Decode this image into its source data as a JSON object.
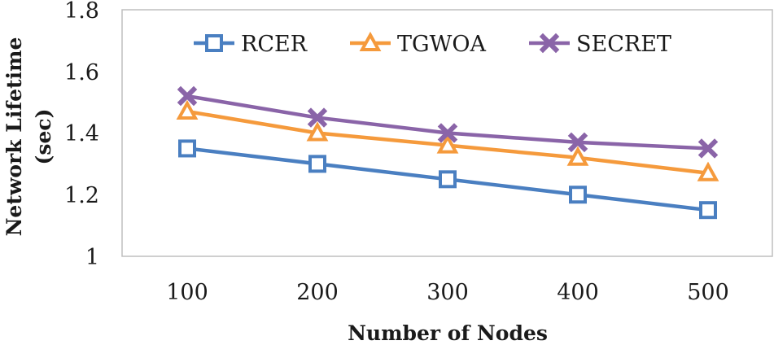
{
  "chart_data": {
    "type": "line",
    "title": "",
    "xlabel": "Number of Nodes",
    "ylabel_lines": [
      "Network Lifetime",
      "(sec)"
    ],
    "categories": [
      "100",
      "200",
      "300",
      "400",
      "500"
    ],
    "ylim": [
      1,
      1.8
    ],
    "yticks": [
      "1",
      "1.2",
      "1.4",
      "1.6",
      "1.8"
    ],
    "grid": false,
    "legend_position": "top",
    "series": [
      {
        "name": "RCER",
        "color": "#4a7fc1",
        "marker": "square",
        "values": [
          1.35,
          1.3,
          1.25,
          1.2,
          1.15
        ]
      },
      {
        "name": "TGWOA",
        "color": "#f59a3c",
        "marker": "triangle",
        "values": [
          1.47,
          1.4,
          1.36,
          1.32,
          1.27
        ]
      },
      {
        "name": "SECRET",
        "color": "#8a64a8",
        "marker": "cross",
        "values": [
          1.52,
          1.45,
          1.4,
          1.37,
          1.35
        ]
      }
    ]
  }
}
